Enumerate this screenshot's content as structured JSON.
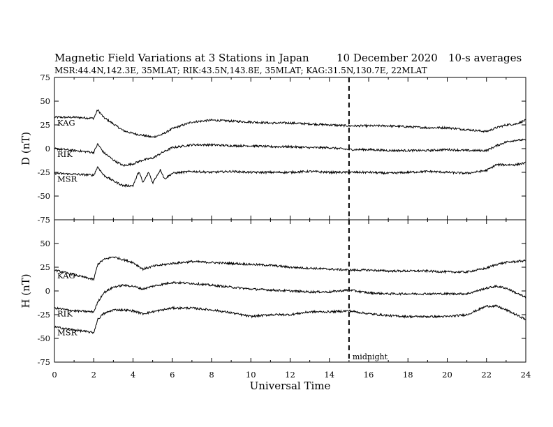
{
  "header": {
    "title": "Magnetic Field Variations at 3 Stations in Japan",
    "date": "10 December 2020",
    "resolution": "10-s averages",
    "stations": "MSR:44.4N,142.3E, 35MLAT;  RIK:43.5N,143.8E, 35MLAT;  KAG:31.5N,130.7E, 22MLAT"
  },
  "chart_data": [
    {
      "type": "line",
      "panel": "D",
      "ylabel": "D (nT)",
      "ylim": [
        -75,
        75
      ],
      "yticks": [
        -75,
        -50,
        -25,
        0,
        25,
        50,
        75
      ],
      "xlim": [
        0,
        24
      ],
      "series": [
        {
          "name": "KAG",
          "x": [
            0,
            1,
            2,
            2.2,
            2.5,
            3,
            3.5,
            4,
            4.5,
            5,
            5.5,
            6,
            7,
            8,
            9,
            10,
            11,
            12,
            13,
            14,
            15,
            16,
            17,
            18,
            19,
            20,
            21,
            22,
            22.5,
            23,
            23.5,
            24
          ],
          "values": [
            33,
            33,
            32,
            41,
            33,
            26,
            19,
            16,
            14,
            12,
            15,
            21,
            28,
            30,
            29,
            28,
            27,
            27,
            26,
            25,
            24,
            24,
            24,
            23,
            22,
            22,
            20,
            18,
            22,
            25,
            26,
            30
          ]
        },
        {
          "name": "RIK",
          "x": [
            0,
            1,
            2,
            2.2,
            2.5,
            3,
            3.5,
            4,
            4.5,
            5,
            5.5,
            6,
            7,
            8,
            9,
            10,
            11,
            12,
            13,
            14,
            15,
            16,
            17,
            18,
            19,
            20,
            21,
            22,
            22.5,
            23,
            23.5,
            24
          ],
          "values": [
            0,
            -2,
            -4,
            5,
            -4,
            -12,
            -18,
            -16,
            -12,
            -10,
            -4,
            1,
            4,
            4,
            3,
            3,
            2,
            2,
            1,
            1,
            -1,
            -1,
            -2,
            -2,
            -2,
            -1,
            -2,
            -2,
            3,
            7,
            9,
            9
          ]
        },
        {
          "name": "MSR",
          "x": [
            0,
            1,
            2,
            2.2,
            2.5,
            3,
            3.5,
            4,
            4.3,
            4.5,
            4.8,
            5,
            5.4,
            5.6,
            6,
            7,
            8,
            9,
            10,
            11,
            12,
            13,
            14,
            15,
            16,
            17,
            18,
            19,
            20,
            21,
            22,
            22.5,
            23,
            23.5,
            24
          ],
          "values": [
            -26,
            -27,
            -28,
            -19,
            -28,
            -34,
            -39,
            -39,
            -24,
            -36,
            -25,
            -36,
            -22,
            -32,
            -26,
            -24,
            -25,
            -24,
            -25,
            -25,
            -25,
            -24,
            -25,
            -25,
            -25,
            -26,
            -25,
            -24,
            -25,
            -26,
            -23,
            -17,
            -17,
            -17,
            -15
          ]
        }
      ],
      "annotation_x": 15
    },
    {
      "type": "line",
      "panel": "H",
      "ylabel": "H (nT)",
      "ylim": [
        -75,
        75
      ],
      "yticks": [
        -75,
        -50,
        -25,
        0,
        25,
        50,
        75
      ],
      "xlim": [
        0,
        24
      ],
      "xlabel": "Universal Time",
      "xticks": [
        0,
        2,
        4,
        6,
        8,
        10,
        12,
        14,
        16,
        18,
        20,
        22,
        24
      ],
      "series": [
        {
          "name": "KAG",
          "x": [
            0,
            1,
            2,
            2.2,
            2.5,
            3,
            3.5,
            4,
            4.5,
            5,
            6,
            7,
            8,
            9,
            10,
            11,
            12,
            13,
            14,
            15,
            16,
            17,
            18,
            19,
            20,
            21,
            22,
            22.5,
            23,
            23.5,
            24
          ],
          "values": [
            22,
            17,
            12,
            28,
            33,
            36,
            33,
            30,
            23,
            26,
            29,
            31,
            30,
            29,
            28,
            27,
            25,
            24,
            23,
            22,
            22,
            21,
            21,
            21,
            20,
            20,
            24,
            28,
            30,
            31,
            32
          ]
        },
        {
          "name": "RIK",
          "x": [
            0,
            1,
            2,
            2.2,
            2.5,
            3,
            3.5,
            4,
            4.5,
            5,
            6,
            7,
            8,
            9,
            10,
            11,
            12,
            13,
            14,
            15,
            16,
            17,
            18,
            19,
            20,
            21,
            22,
            22.5,
            23,
            23.5,
            24
          ],
          "values": [
            -18,
            -21,
            -22,
            -12,
            -2,
            4,
            6,
            5,
            2,
            5,
            9,
            8,
            6,
            4,
            2,
            1,
            0,
            -1,
            -1,
            1,
            -2,
            -3,
            -3,
            -3,
            -3,
            -3,
            3,
            5,
            3,
            -2,
            -7
          ]
        },
        {
          "name": "MSR",
          "x": [
            0,
            1,
            2,
            2.2,
            2.5,
            3,
            3.5,
            4,
            4.5,
            5,
            6,
            7,
            8,
            9,
            10,
            11,
            12,
            13,
            14,
            15,
            16,
            17,
            18,
            19,
            20,
            21,
            22,
            22.5,
            23,
            23.5,
            24
          ],
          "values": [
            -38,
            -41,
            -44,
            -30,
            -24,
            -20,
            -20,
            -21,
            -24,
            -22,
            -18,
            -18,
            -20,
            -23,
            -27,
            -25,
            -25,
            -22,
            -22,
            -21,
            -24,
            -26,
            -27,
            -27,
            -27,
            -25,
            -16,
            -16,
            -20,
            -25,
            -30
          ]
        }
      ],
      "annotation_x": 15,
      "annotation_text": "midnight"
    }
  ]
}
